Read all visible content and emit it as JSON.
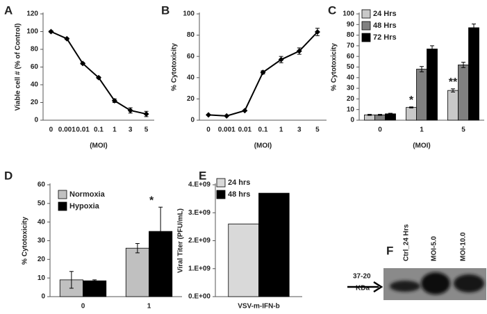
{
  "chart_data": [
    {
      "type": "line",
      "panel": "A",
      "y_label": "Viable cell # (% of Control)",
      "x_label": "(MOI)",
      "categories": [
        "0",
        "0.001",
        "0.01",
        "0.1",
        "1",
        "3",
        "5"
      ],
      "values": [
        100,
        92,
        64,
        48,
        22,
        11,
        7
      ],
      "errors": [
        1,
        1,
        1,
        1,
        2,
        3,
        3
      ],
      "color": "#000000",
      "ylim": [
        0,
        120
      ],
      "yticks": [
        0,
        20,
        40,
        60,
        80,
        100,
        120
      ]
    },
    {
      "type": "line",
      "panel": "B",
      "y_label": "% Cytotoxicity",
      "x_label": "(MOI)",
      "categories": [
        "0",
        "0.001",
        "0.01",
        "0.1",
        "1",
        "3",
        "5"
      ],
      "values": [
        5,
        4,
        9,
        45,
        57,
        65,
        83
      ],
      "errors": [
        0.5,
        0.5,
        0.5,
        1.5,
        3,
        3,
        3.5
      ],
      "color": "#000000",
      "ylim": [
        0,
        100
      ],
      "yticks": [
        0,
        20,
        40,
        60,
        80,
        100
      ]
    },
    {
      "type": "bar",
      "panel": "C",
      "y_label": "% Cytotoxicity",
      "x_label": "(MOI)",
      "categories": [
        "0",
        "1",
        "5"
      ],
      "series": [
        {
          "name": "24 Hrs",
          "color": "#c8c8c8",
          "values": [
            5,
            12,
            28
          ],
          "errors": [
            0.5,
            0.5,
            1.5
          ]
        },
        {
          "name": "48 Hrs",
          "color": "#808080",
          "values": [
            5,
            48,
            52
          ],
          "errors": [
            0.5,
            2.5,
            2.5
          ]
        },
        {
          "name": "72 Hrs",
          "color": "#000000",
          "values": [
            6,
            67,
            87
          ],
          "errors": [
            0.5,
            3,
            3.5
          ]
        }
      ],
      "annotations": [
        "*",
        "**"
      ],
      "ylim": [
        0,
        100
      ],
      "yticks": [
        0,
        10,
        20,
        30,
        40,
        50,
        60,
        70,
        80,
        90,
        100
      ]
    },
    {
      "type": "bar",
      "panel": "D",
      "y_label": "% Cytotoxicity",
      "categories": [
        "0",
        "1"
      ],
      "series": [
        {
          "name": "Normoxia",
          "color": "#c0c0c0",
          "values": [
            9,
            26
          ],
          "errors": [
            4.5,
            2.5
          ]
        },
        {
          "name": "Hypoxia",
          "color": "#000000",
          "values": [
            8.5,
            35
          ],
          "errors": [
            0.5,
            13
          ]
        }
      ],
      "annotations": [
        "*"
      ],
      "ylim": [
        0,
        60
      ],
      "yticks": [
        0,
        10,
        20,
        30,
        40,
        50,
        60
      ]
    },
    {
      "type": "bar",
      "panel": "E",
      "y_label": "Viral Titer (PFU/mL)",
      "categories": [
        "VSV-m-IFN-b"
      ],
      "series": [
        {
          "name": "24 hrs",
          "color": "#d9d9d9",
          "values": [
            2600000000
          ]
        },
        {
          "name": "48 hrs",
          "color": "#000000",
          "values": [
            3700000000
          ]
        }
      ],
      "ylim": [
        0,
        4000000000
      ],
      "yticks": [
        {
          "value": 0,
          "label": "0.E+00"
        },
        {
          "value": 1000000000,
          "label": "1.E+09"
        },
        {
          "value": 2000000000,
          "label": "2.E+09"
        },
        {
          "value": 3000000000,
          "label": "3.E+09"
        },
        {
          "value": 4000000000,
          "label": "4.E+09"
        }
      ]
    }
  ],
  "blot": {
    "panel": "F",
    "lanes": [
      "Ctrl_24 Hrs",
      "MOI-5.0",
      "MOI-10.0"
    ],
    "marker": [
      "37-20",
      "KDa"
    ]
  }
}
